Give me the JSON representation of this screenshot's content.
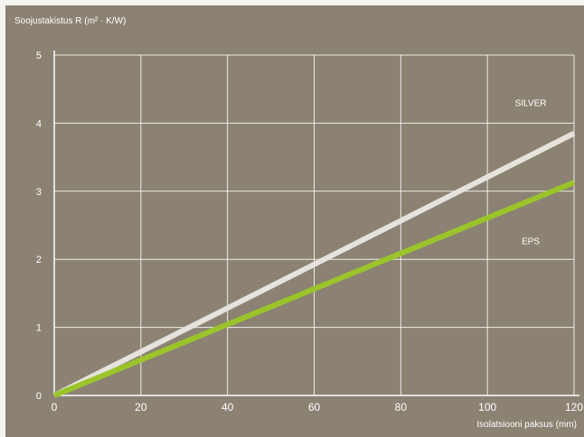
{
  "chart_data": {
    "type": "line",
    "title": "",
    "ylabel": "Soojustakistus  R (m² · K/W)",
    "xlabel": "Isolatsiooni paksus  (mm)",
    "xlim": [
      0,
      120
    ],
    "ylim": [
      0,
      5
    ],
    "x_ticks": [
      "0",
      "20",
      "40",
      "60",
      "80",
      "100",
      "120"
    ],
    "y_ticks": [
      "0",
      "1",
      "2",
      "3",
      "4",
      "5"
    ],
    "grid": true,
    "series": [
      {
        "name": "SILVER",
        "x": [
          0,
          120
        ],
        "y": [
          0,
          3.85
        ],
        "color": "#e6e3dc"
      },
      {
        "name": "EPS",
        "x": [
          0,
          120
        ],
        "y": [
          0,
          3.13
        ],
        "color": "#9bc42a"
      }
    ],
    "annotations": [
      {
        "text": "SILVER",
        "x": 110,
        "y": 4.25,
        "series": 0
      },
      {
        "text": "EPS",
        "x": 110,
        "y": 2.22,
        "series": 1
      }
    ]
  }
}
